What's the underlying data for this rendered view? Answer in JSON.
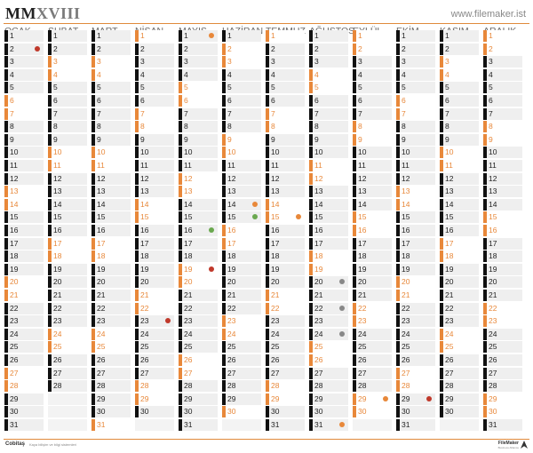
{
  "header": {
    "title_mm": "MM",
    "title_x": "XVIII",
    "website": "www.filemaker.ist"
  },
  "months": [
    {
      "name": "OCAK",
      "weekend": [
        6,
        7,
        13,
        14,
        20,
        21,
        27,
        28
      ]
    },
    {
      "name": "ŞUBAT",
      "weekend": [
        3,
        4,
        10,
        11,
        17,
        18,
        24,
        25
      ]
    },
    {
      "name": "MART",
      "weekend": [
        3,
        4,
        10,
        11,
        17,
        18,
        24,
        25,
        31
      ]
    },
    {
      "name": "NİSAN",
      "weekend": [
        1,
        7,
        8,
        14,
        15,
        21,
        22,
        28,
        29
      ]
    },
    {
      "name": "MAYIS",
      "weekend": [
        5,
        6,
        12,
        13,
        19,
        20,
        26,
        27
      ]
    },
    {
      "name": "HAZİRAN",
      "weekend": [
        2,
        3,
        9,
        10,
        16,
        17,
        23,
        24,
        30
      ]
    },
    {
      "name": "TEMMUZ",
      "weekend": [
        1,
        7,
        8,
        14,
        15,
        21,
        22,
        28,
        29
      ]
    },
    {
      "name": "AĞUSTOS",
      "weekend": [
        4,
        5,
        11,
        12,
        18,
        19,
        25,
        26
      ]
    },
    {
      "name": "EYLÜL",
      "weekend": [
        1,
        2,
        8,
        9,
        15,
        16,
        22,
        23,
        29,
        30
      ]
    },
    {
      "name": "EKİM",
      "weekend": [
        6,
        7,
        13,
        14,
        20,
        21,
        27,
        28
      ]
    },
    {
      "name": "KASIM",
      "weekend": [
        3,
        4,
        10,
        11,
        17,
        18,
        24,
        25
      ]
    },
    {
      "name": "ARALIK",
      "weekend": [
        1,
        2,
        8,
        9,
        15,
        16,
        22,
        23,
        29,
        30
      ]
    }
  ],
  "month_days": [
    31,
    28,
    31,
    30,
    31,
    30,
    31,
    31,
    30,
    31,
    30,
    31
  ],
  "colors": {
    "accent": "#e8883a",
    "weekday_bar": "#111111",
    "cell": "#efefef"
  },
  "events": [
    {
      "month": 0,
      "day": 2,
      "color": "#c0392b"
    },
    {
      "month": 4,
      "day": 1,
      "color": "#e8883a"
    },
    {
      "month": 3,
      "day": 23,
      "color": "#c0392b"
    },
    {
      "month": 4,
      "day": 16,
      "color": "#6aa84f"
    },
    {
      "month": 4,
      "day": 19,
      "color": "#c0392b"
    },
    {
      "month": 5,
      "day": 14,
      "color": "#e8883a"
    },
    {
      "month": 5,
      "day": 15,
      "color": "#6aa84f"
    },
    {
      "month": 6,
      "day": 15,
      "color": "#e8883a"
    },
    {
      "month": 7,
      "day": 20,
      "color": "#888888"
    },
    {
      "month": 7,
      "day": 22,
      "color": "#888888"
    },
    {
      "month": 7,
      "day": 24,
      "color": "#888888"
    },
    {
      "month": 7,
      "day": 31,
      "color": "#e8883a"
    },
    {
      "month": 8,
      "day": 29,
      "color": "#e8883a"
    },
    {
      "month": 9,
      "day": 29,
      "color": "#c0392b"
    }
  ],
  "footer": {
    "logo_left": "Cobitaş",
    "tagline": "Kaya bilişim ve bilgi sistemleri",
    "logo_right": "FileMaker",
    "logo_right_sub": "Business Alliance"
  }
}
